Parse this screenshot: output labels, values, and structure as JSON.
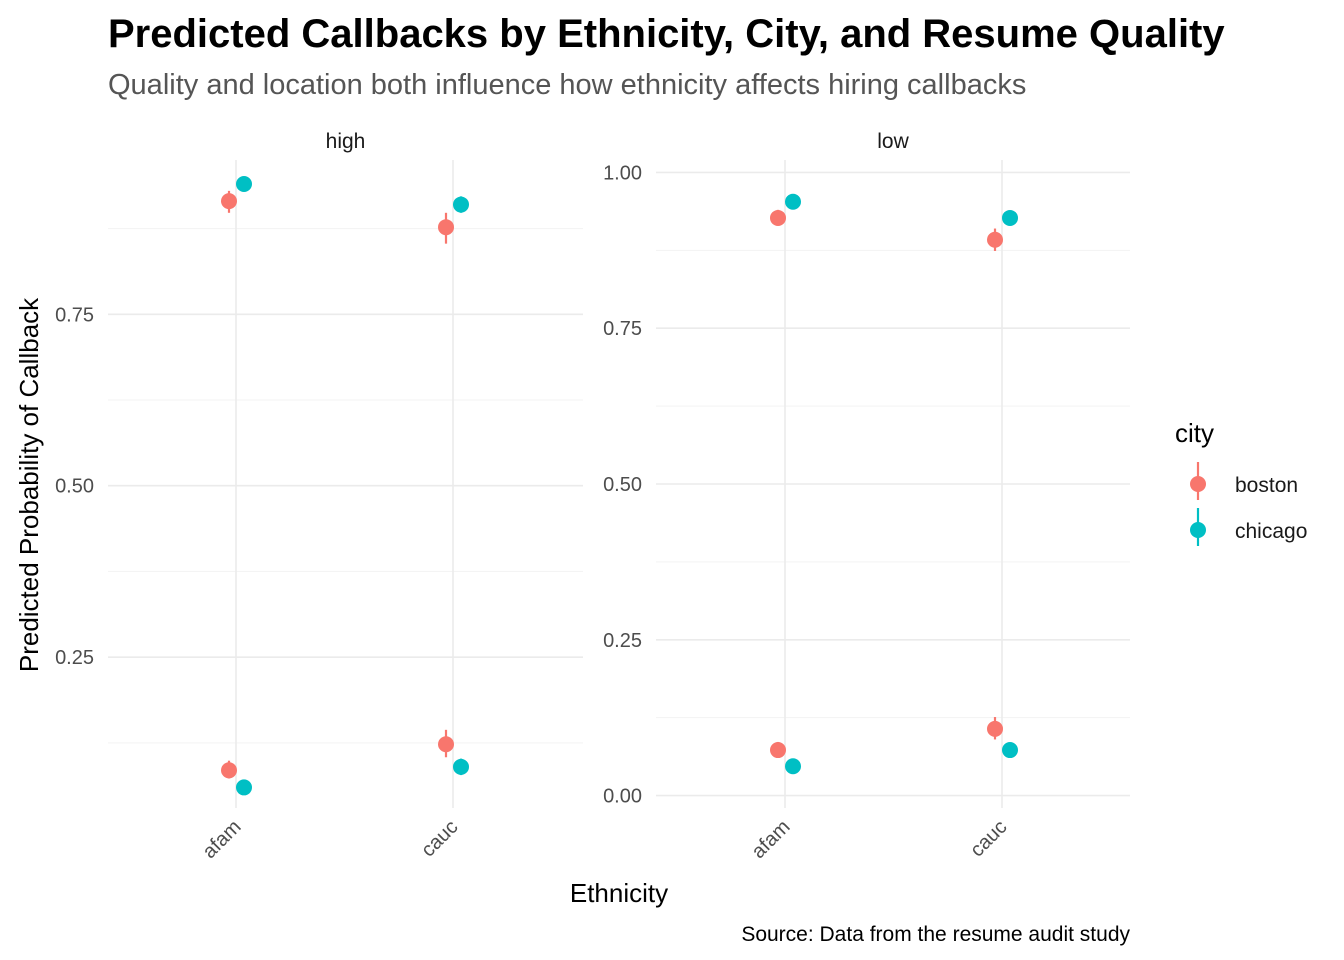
{
  "chart_data": {
    "type": "scatter",
    "title": "Predicted Callbacks by Ethnicity, City, and Resume Quality",
    "subtitle": "Quality and location both influence how ethnicity affects hiring callbacks",
    "xlabel": "Ethnicity",
    "ylabel": "Predicted Probability of Callback",
    "caption": "Source: Data from the resume audit study",
    "categories": [
      "afam",
      "cauc"
    ],
    "facet_title": "",
    "legend": {
      "title": "city",
      "placement": "right"
    },
    "grid": true,
    "colors": {
      "boston": "#F8766D",
      "chicago": "#00BFC4"
    },
    "panels": [
      {
        "label": "high",
        "ylim": [
          0.03,
          0.975
        ],
        "yticks": [
          0.25,
          0.5,
          0.75
        ],
        "ytick_labels": [
          "0.25",
          "0.50",
          "0.75"
        ],
        "series": [
          {
            "name": "boston",
            "points": [
              {
                "x": "afam",
                "group": 1,
                "y": 0.915,
                "lo": 0.898,
                "hi": 0.93
              },
              {
                "x": "cauc",
                "group": 1,
                "y": 0.877,
                "lo": 0.853,
                "hi": 0.898
              },
              {
                "x": "afam",
                "group": 2,
                "y": 0.085,
                "lo": 0.073,
                "hi": 0.099
              },
              {
                "x": "cauc",
                "group": 2,
                "y": 0.123,
                "lo": 0.104,
                "hi": 0.144
              }
            ]
          },
          {
            "name": "chicago",
            "points": [
              {
                "x": "afam",
                "group": 1,
                "y": 0.94,
                "lo": 0.933,
                "hi": 0.947
              },
              {
                "x": "cauc",
                "group": 1,
                "y": 0.91,
                "lo": 0.898,
                "hi": 0.922
              },
              {
                "x": "afam",
                "group": 2,
                "y": 0.06,
                "lo": 0.053,
                "hi": 0.067
              },
              {
                "x": "cauc",
                "group": 2,
                "y": 0.09,
                "lo": 0.078,
                "hi": 0.102
              }
            ]
          }
        ]
      },
      {
        "label": "low",
        "ylim": [
          -0.02,
          1.02
        ],
        "yticks": [
          0.0,
          0.25,
          0.5,
          0.75,
          1.0
        ],
        "ytick_labels": [
          "0.00",
          "0.25",
          "0.50",
          "0.75",
          "1.00"
        ],
        "series": [
          {
            "name": "boston",
            "points": [
              {
                "x": "afam",
                "group": 1,
                "y": 0.927,
                "lo": 0.915,
                "hi": 0.94
              },
              {
                "x": "cauc",
                "group": 1,
                "y": 0.892,
                "lo": 0.874,
                "hi": 0.91
              },
              {
                "x": "afam",
                "group": 2,
                "y": 0.073,
                "lo": 0.061,
                "hi": 0.086
              },
              {
                "x": "cauc",
                "group": 2,
                "y": 0.107,
                "lo": 0.09,
                "hi": 0.126
              }
            ]
          },
          {
            "name": "chicago",
            "points": [
              {
                "x": "afam",
                "group": 1,
                "y": 0.953,
                "lo": 0.947,
                "hi": 0.959
              },
              {
                "x": "cauc",
                "group": 1,
                "y": 0.927,
                "lo": 0.918,
                "hi": 0.937
              },
              {
                "x": "afam",
                "group": 2,
                "y": 0.047,
                "lo": 0.041,
                "hi": 0.053
              },
              {
                "x": "cauc",
                "group": 2,
                "y": 0.073,
                "lo": 0.063,
                "hi": 0.082
              }
            ]
          }
        ]
      }
    ]
  }
}
